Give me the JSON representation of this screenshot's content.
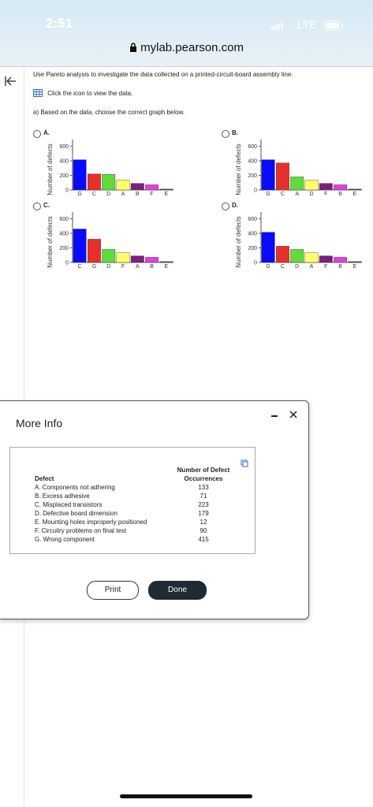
{
  "status": {
    "time": "2:51",
    "network": "LTE"
  },
  "browser": {
    "url": "mylab.pearson.com"
  },
  "question": {
    "instruction": "Use Pareto analysis to investigate the data collected on a printed-circuit-board assembly line.",
    "data_link": "Click the icon to view the data.",
    "part_a": "a) Based on the data, choose the correct graph below."
  },
  "options": [
    {
      "label": "A.",
      "chart_data": {
        "type": "bar",
        "ylabel": "Number of defects",
        "categories": [
          "G",
          "C",
          "D",
          "A",
          "B",
          "F",
          "E"
        ],
        "values": [
          415,
          220,
          215,
          133,
          90,
          71,
          12
        ],
        "colors": [
          "#0a0aff",
          "#e8302a",
          "#5fdc3c",
          "#ffff66",
          "#7a1f7a",
          "#e040e0",
          "#2d6b3a"
        ],
        "ylim": [
          0,
          650
        ],
        "yticks": [
          0,
          200,
          400,
          600
        ]
      }
    },
    {
      "label": "B.",
      "chart_data": {
        "type": "bar",
        "ylabel": "Number of defects",
        "categories": [
          "G",
          "C",
          "A",
          "D",
          "F",
          "B",
          "E"
        ],
        "values": [
          415,
          370,
          179,
          133,
          90,
          71,
          12
        ],
        "colors": [
          "#0a0aff",
          "#e8302a",
          "#5fdc3c",
          "#ffff66",
          "#7a1f7a",
          "#e040e0",
          "#2d6b3a"
        ],
        "ylim": [
          0,
          650
        ],
        "yticks": [
          0,
          200,
          400,
          600
        ]
      }
    },
    {
      "label": "C.",
      "chart_data": {
        "type": "bar",
        "ylabel": "Number of defects",
        "categories": [
          "C",
          "G",
          "D",
          "F",
          "A",
          "B",
          "E"
        ],
        "values": [
          460,
          320,
          179,
          133,
          90,
          71,
          12
        ],
        "colors": [
          "#0a0aff",
          "#e8302a",
          "#5fdc3c",
          "#ffff66",
          "#7a1f7a",
          "#e040e0",
          "#2d6b3a"
        ],
        "ylim": [
          0,
          650
        ],
        "yticks": [
          0,
          200,
          400,
          600
        ]
      }
    },
    {
      "label": "D.",
      "chart_data": {
        "type": "bar",
        "ylabel": "Number of defects",
        "categories": [
          "G",
          "C",
          "D",
          "A",
          "F",
          "B",
          "E"
        ],
        "values": [
          415,
          223,
          179,
          133,
          90,
          71,
          12
        ],
        "colors": [
          "#0a0aff",
          "#e8302a",
          "#5fdc3c",
          "#ffff66",
          "#7a1f7a",
          "#e040e0",
          "#2d6b3a"
        ],
        "ylim": [
          0,
          650
        ],
        "yticks": [
          0,
          200,
          400,
          600
        ]
      }
    }
  ],
  "dialog": {
    "title": "More Info",
    "table": {
      "headers": [
        "Defect",
        "Number of Defect Occurrences"
      ],
      "rows": [
        [
          "A. Components not adhering",
          133
        ],
        [
          "B. Excess adhesive",
          71
        ],
        [
          "C. Misplaced transistors",
          223
        ],
        [
          "D. Defective board dimension",
          179
        ],
        [
          "E. Mounting holes improperly positioned",
          12
        ],
        [
          "F. Circuitry problems on final test",
          90
        ],
        [
          "G. Wrong component",
          415
        ]
      ]
    },
    "buttons": [
      "Print",
      "Done"
    ]
  }
}
